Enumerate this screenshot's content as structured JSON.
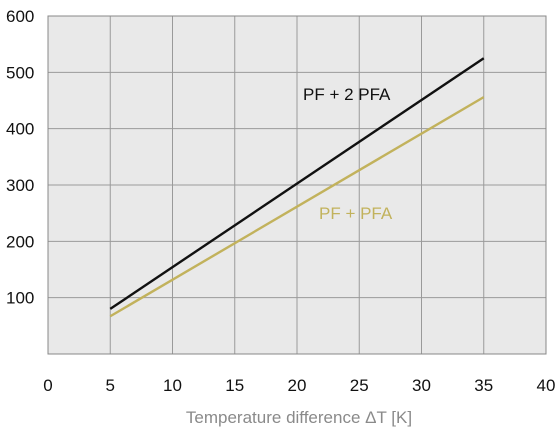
{
  "chart_data": {
    "type": "line",
    "xlabel": "Temperature difference ΔT [K]",
    "ylabel": "",
    "xlim": [
      0,
      40
    ],
    "ylim": [
      0,
      600
    ],
    "x_ticks": [
      "0",
      "5",
      "10",
      "15",
      "20",
      "25",
      "30",
      "35",
      "40"
    ],
    "y_ticks": [
      "100",
      "200",
      "300",
      "400",
      "500",
      "600"
    ],
    "grid": true,
    "background": "#e9e9e9",
    "series": [
      {
        "name": "PF + 2 PFA",
        "color": "#111111",
        "x": [
          5,
          35
        ],
        "y": [
          80,
          525
        ]
      },
      {
        "name": "PF + PFA",
        "color": "#c2b25c",
        "x": [
          5,
          35
        ],
        "y": [
          67,
          456
        ]
      }
    ]
  }
}
